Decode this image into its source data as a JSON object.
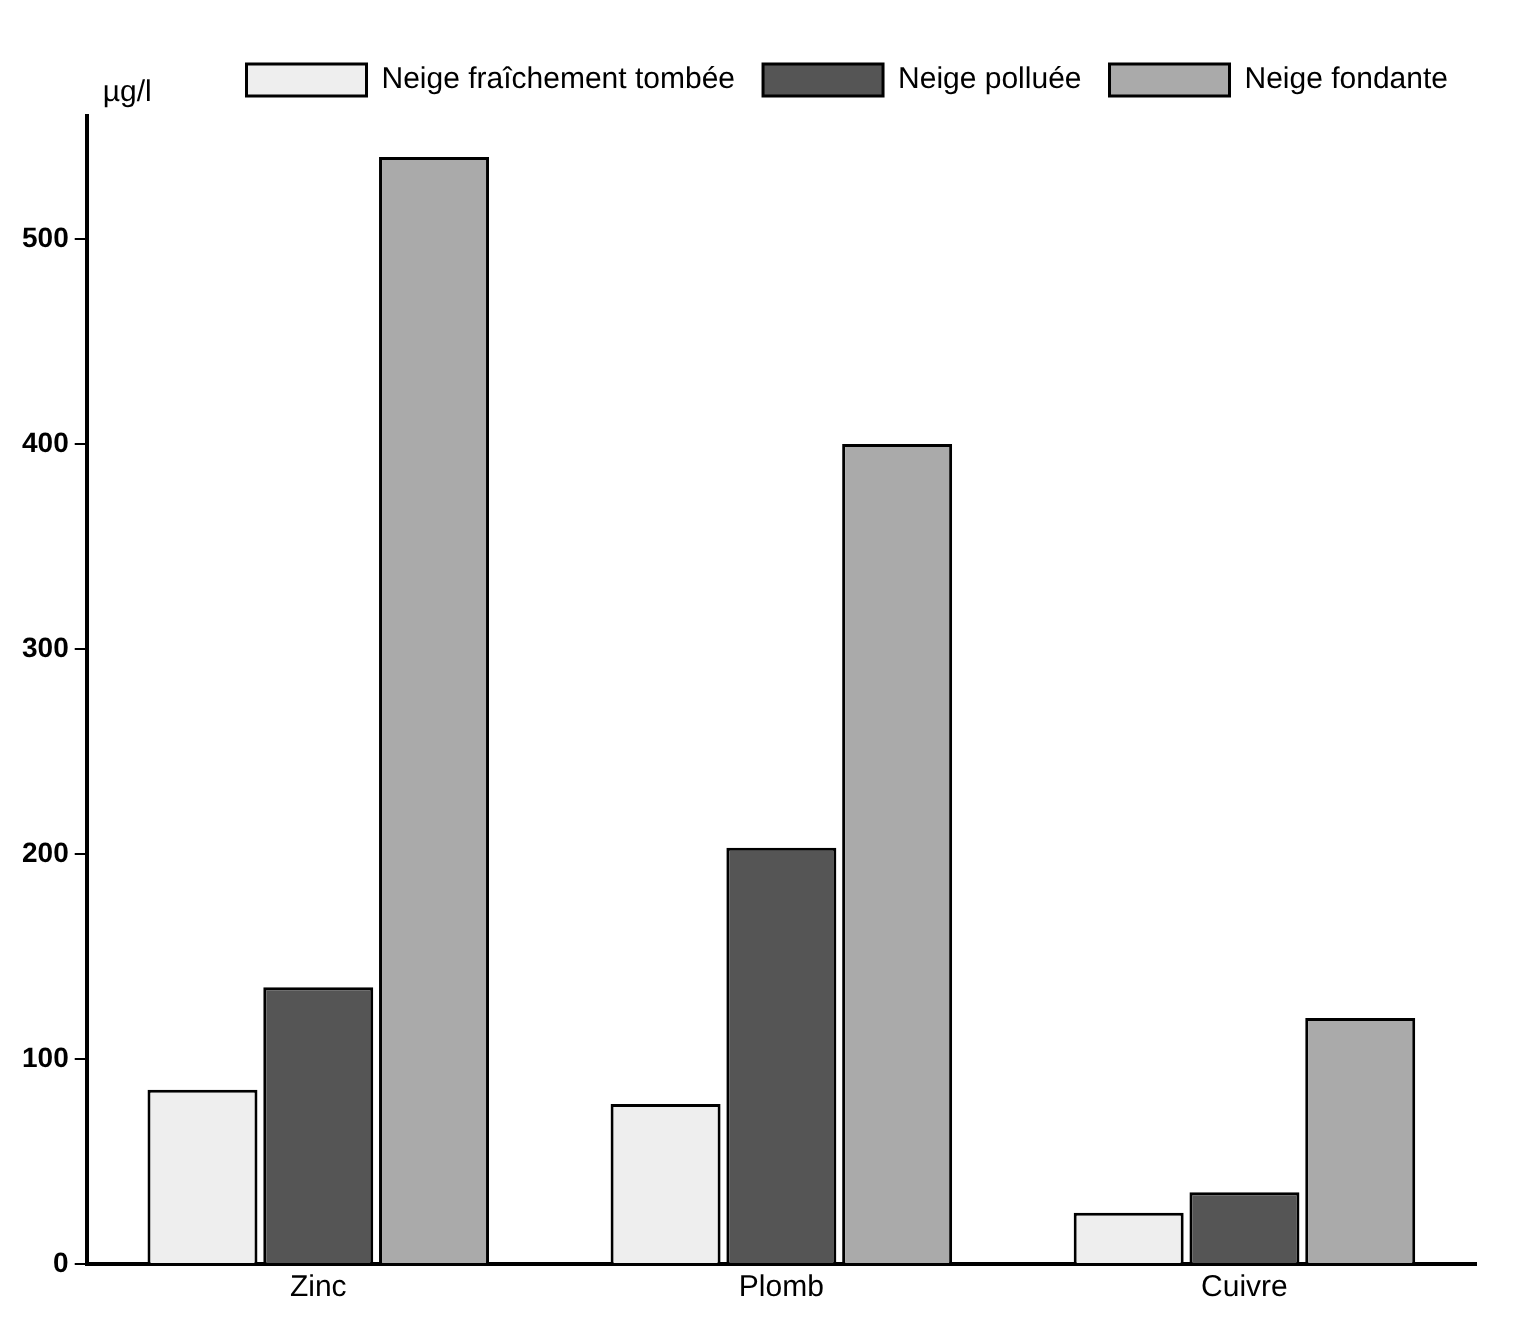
{
  "chart_data": {
    "type": "bar",
    "ylabel": "µg/l",
    "categories": [
      "Zinc",
      "Plomb",
      "Cuivre"
    ],
    "series": [
      {
        "name": "Neige fraîchement tombée",
        "color": "#eeeeee",
        "values": [
          85,
          78,
          25
        ]
      },
      {
        "name": "Neige polluée",
        "color": "#555555",
        "values": [
          135,
          203,
          35
        ]
      },
      {
        "name": "Neige fondante",
        "color": "#aaaaaa",
        "values": [
          540,
          400,
          120
        ]
      }
    ],
    "ylim": [
      0,
      560
    ],
    "yticks": [
      0,
      100,
      200,
      300,
      400,
      500
    ],
    "grid": false,
    "legend": "top right"
  }
}
